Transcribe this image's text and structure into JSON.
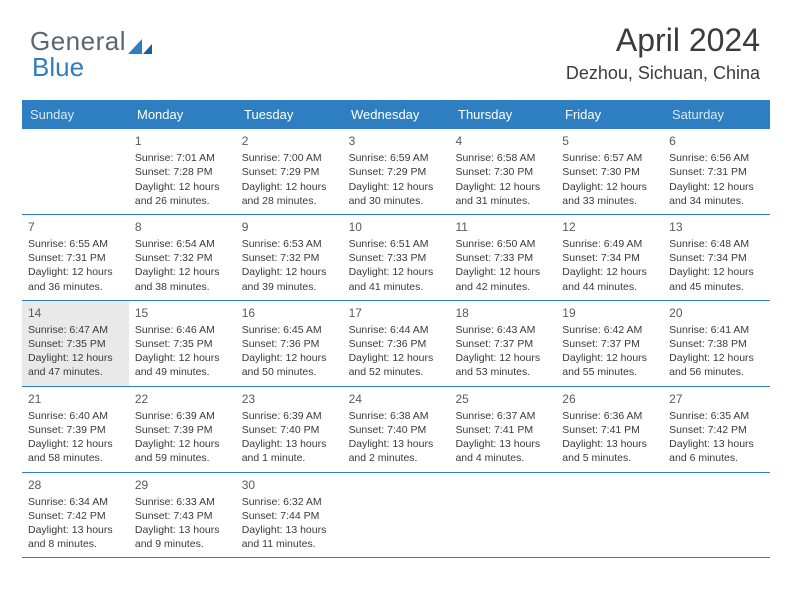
{
  "logo": {
    "text1": "General",
    "text2": "Blue",
    "mark_color": "#2d7fc1"
  },
  "title": "April 2024",
  "location": "Dezhou, Sichuan, China",
  "colors": {
    "header_bg": "#2d7fc1",
    "header_text": "#ffffff",
    "weekend_text": "#d7e9f6",
    "rule": "#2d7fc1",
    "highlight_bg": "#e9e9e9",
    "body_text": "#3a3a3a"
  },
  "day_headers": [
    "Sunday",
    "Monday",
    "Tuesday",
    "Wednesday",
    "Thursday",
    "Friday",
    "Saturday"
  ],
  "weeks": [
    [
      {
        "num": "",
        "lines": []
      },
      {
        "num": "1",
        "lines": [
          "Sunrise: 7:01 AM",
          "Sunset: 7:28 PM",
          "Daylight: 12 hours",
          "and 26 minutes."
        ]
      },
      {
        "num": "2",
        "lines": [
          "Sunrise: 7:00 AM",
          "Sunset: 7:29 PM",
          "Daylight: 12 hours",
          "and 28 minutes."
        ]
      },
      {
        "num": "3",
        "lines": [
          "Sunrise: 6:59 AM",
          "Sunset: 7:29 PM",
          "Daylight: 12 hours",
          "and 30 minutes."
        ]
      },
      {
        "num": "4",
        "lines": [
          "Sunrise: 6:58 AM",
          "Sunset: 7:30 PM",
          "Daylight: 12 hours",
          "and 31 minutes."
        ]
      },
      {
        "num": "5",
        "lines": [
          "Sunrise: 6:57 AM",
          "Sunset: 7:30 PM",
          "Daylight: 12 hours",
          "and 33 minutes."
        ]
      },
      {
        "num": "6",
        "lines": [
          "Sunrise: 6:56 AM",
          "Sunset: 7:31 PM",
          "Daylight: 12 hours",
          "and 34 minutes."
        ]
      }
    ],
    [
      {
        "num": "7",
        "lines": [
          "Sunrise: 6:55 AM",
          "Sunset: 7:31 PM",
          "Daylight: 12 hours",
          "and 36 minutes."
        ]
      },
      {
        "num": "8",
        "lines": [
          "Sunrise: 6:54 AM",
          "Sunset: 7:32 PM",
          "Daylight: 12 hours",
          "and 38 minutes."
        ]
      },
      {
        "num": "9",
        "lines": [
          "Sunrise: 6:53 AM",
          "Sunset: 7:32 PM",
          "Daylight: 12 hours",
          "and 39 minutes."
        ]
      },
      {
        "num": "10",
        "lines": [
          "Sunrise: 6:51 AM",
          "Sunset: 7:33 PM",
          "Daylight: 12 hours",
          "and 41 minutes."
        ]
      },
      {
        "num": "11",
        "lines": [
          "Sunrise: 6:50 AM",
          "Sunset: 7:33 PM",
          "Daylight: 12 hours",
          "and 42 minutes."
        ]
      },
      {
        "num": "12",
        "lines": [
          "Sunrise: 6:49 AM",
          "Sunset: 7:34 PM",
          "Daylight: 12 hours",
          "and 44 minutes."
        ]
      },
      {
        "num": "13",
        "lines": [
          "Sunrise: 6:48 AM",
          "Sunset: 7:34 PM",
          "Daylight: 12 hours",
          "and 45 minutes."
        ]
      }
    ],
    [
      {
        "num": "14",
        "hl": true,
        "lines": [
          "Sunrise: 6:47 AM",
          "Sunset: 7:35 PM",
          "Daylight: 12 hours",
          "and 47 minutes."
        ]
      },
      {
        "num": "15",
        "lines": [
          "Sunrise: 6:46 AM",
          "Sunset: 7:35 PM",
          "Daylight: 12 hours",
          "and 49 minutes."
        ]
      },
      {
        "num": "16",
        "lines": [
          "Sunrise: 6:45 AM",
          "Sunset: 7:36 PM",
          "Daylight: 12 hours",
          "and 50 minutes."
        ]
      },
      {
        "num": "17",
        "lines": [
          "Sunrise: 6:44 AM",
          "Sunset: 7:36 PM",
          "Daylight: 12 hours",
          "and 52 minutes."
        ]
      },
      {
        "num": "18",
        "lines": [
          "Sunrise: 6:43 AM",
          "Sunset: 7:37 PM",
          "Daylight: 12 hours",
          "and 53 minutes."
        ]
      },
      {
        "num": "19",
        "lines": [
          "Sunrise: 6:42 AM",
          "Sunset: 7:37 PM",
          "Daylight: 12 hours",
          "and 55 minutes."
        ]
      },
      {
        "num": "20",
        "lines": [
          "Sunrise: 6:41 AM",
          "Sunset: 7:38 PM",
          "Daylight: 12 hours",
          "and 56 minutes."
        ]
      }
    ],
    [
      {
        "num": "21",
        "lines": [
          "Sunrise: 6:40 AM",
          "Sunset: 7:39 PM",
          "Daylight: 12 hours",
          "and 58 minutes."
        ]
      },
      {
        "num": "22",
        "lines": [
          "Sunrise: 6:39 AM",
          "Sunset: 7:39 PM",
          "Daylight: 12 hours",
          "and 59 minutes."
        ]
      },
      {
        "num": "23",
        "lines": [
          "Sunrise: 6:39 AM",
          "Sunset: 7:40 PM",
          "Daylight: 13 hours",
          "and 1 minute."
        ]
      },
      {
        "num": "24",
        "lines": [
          "Sunrise: 6:38 AM",
          "Sunset: 7:40 PM",
          "Daylight: 13 hours",
          "and 2 minutes."
        ]
      },
      {
        "num": "25",
        "lines": [
          "Sunrise: 6:37 AM",
          "Sunset: 7:41 PM",
          "Daylight: 13 hours",
          "and 4 minutes."
        ]
      },
      {
        "num": "26",
        "lines": [
          "Sunrise: 6:36 AM",
          "Sunset: 7:41 PM",
          "Daylight: 13 hours",
          "and 5 minutes."
        ]
      },
      {
        "num": "27",
        "lines": [
          "Sunrise: 6:35 AM",
          "Sunset: 7:42 PM",
          "Daylight: 13 hours",
          "and 6 minutes."
        ]
      }
    ],
    [
      {
        "num": "28",
        "lines": [
          "Sunrise: 6:34 AM",
          "Sunset: 7:42 PM",
          "Daylight: 13 hours",
          "and 8 minutes."
        ]
      },
      {
        "num": "29",
        "lines": [
          "Sunrise: 6:33 AM",
          "Sunset: 7:43 PM",
          "Daylight: 13 hours",
          "and 9 minutes."
        ]
      },
      {
        "num": "30",
        "lines": [
          "Sunrise: 6:32 AM",
          "Sunset: 7:44 PM",
          "Daylight: 13 hours",
          "and 11 minutes."
        ]
      },
      {
        "num": "",
        "lines": []
      },
      {
        "num": "",
        "lines": []
      },
      {
        "num": "",
        "lines": []
      },
      {
        "num": "",
        "lines": []
      }
    ]
  ]
}
